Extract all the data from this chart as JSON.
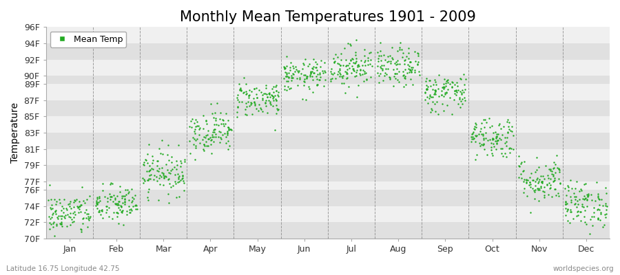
{
  "title": "Monthly Mean Temperatures 1901 - 2009",
  "ylabel": "Temperature",
  "xlabel_bottom_left": "Latitude 16.75 Longitude 42.75",
  "xlabel_bottom_right": "worldspecies.org",
  "legend_label": "Mean Temp",
  "dot_color": "#22aa22",
  "background_color": "#ffffff",
  "band_color_light": "#f0f0f0",
  "band_color_dark": "#e0e0e0",
  "ytick_labels": [
    "70F",
    "72F",
    "74F",
    "76F",
    "77F",
    "79F",
    "81F",
    "83F",
    "85F",
    "87F",
    "89F",
    "90F",
    "92F",
    "94F",
    "96F"
  ],
  "ytick_values": [
    70,
    72,
    74,
    76,
    77,
    79,
    81,
    83,
    85,
    87,
    89,
    90,
    92,
    94,
    96
  ],
  "ylim": [
    70,
    96
  ],
  "months": [
    "Jan",
    "Feb",
    "Mar",
    "Apr",
    "May",
    "Jun",
    "Jul",
    "Aug",
    "Sep",
    "Oct",
    "Nov",
    "Dec"
  ],
  "month_centers": [
    1,
    2,
    3,
    4,
    5,
    6,
    7,
    8,
    9,
    10,
    11,
    12
  ],
  "month_boundaries": [
    1.5,
    2.5,
    3.5,
    4.5,
    5.5,
    6.5,
    7.5,
    8.5,
    9.5,
    10.5,
    11.5
  ],
  "xlim": [
    0.5,
    12.5
  ],
  "title_fontsize": 15,
  "axis_fontsize": 10,
  "tick_fontsize": 9,
  "n_years": 109,
  "seed": 42,
  "mean_temps_by_month": [
    73.0,
    74.2,
    78.2,
    83.2,
    87.2,
    90.0,
    91.2,
    91.0,
    88.0,
    82.5,
    77.2,
    74.2
  ],
  "std_temps_by_month": [
    1.3,
    1.2,
    1.4,
    1.3,
    1.1,
    1.0,
    1.3,
    1.2,
    1.2,
    1.3,
    1.4,
    1.4
  ]
}
